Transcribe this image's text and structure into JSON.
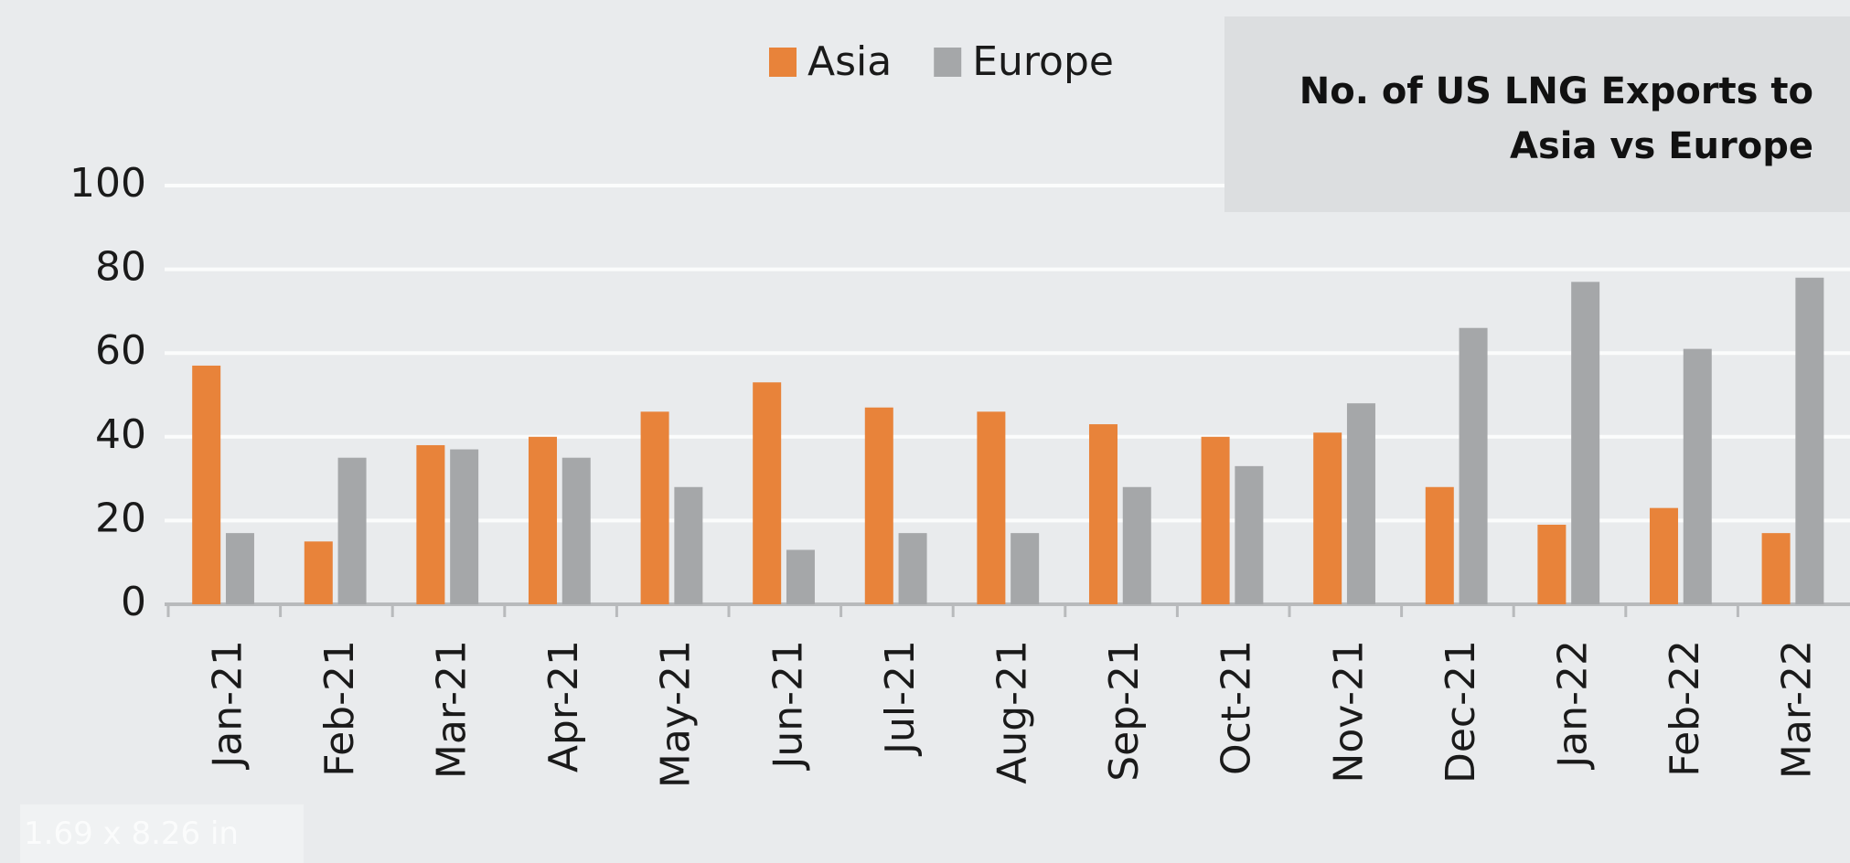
{
  "chart_data": {
    "type": "bar",
    "title": "No. of US LNG Exports to Asia vs Europe",
    "categories": [
      "Jan-21",
      "Feb-21",
      "Mar-21",
      "Apr-21",
      "May-21",
      "Jun-21",
      "Jul-21",
      "Aug-21",
      "Sep-21",
      "Oct-21",
      "Nov-21",
      "Dec-21",
      "Jan-22",
      "Feb-22",
      "Mar-22"
    ],
    "series": [
      {
        "name": "Asia",
        "color": "#e8833a",
        "values": [
          57,
          15,
          38,
          40,
          46,
          53,
          47,
          46,
          43,
          40,
          41,
          28,
          19,
          23,
          17
        ]
      },
      {
        "name": "Europe",
        "color": "#a5a7a9",
        "values": [
          17,
          35,
          37,
          35,
          28,
          13,
          17,
          17,
          28,
          33,
          48,
          66,
          77,
          61,
          78
        ]
      }
    ],
    "ylim": [
      0,
      100
    ],
    "yticks": [
      0,
      20,
      40,
      60,
      80,
      100
    ],
    "grid": true,
    "legend": "top",
    "overlay_text": "1.69 x 8.26 in"
  }
}
